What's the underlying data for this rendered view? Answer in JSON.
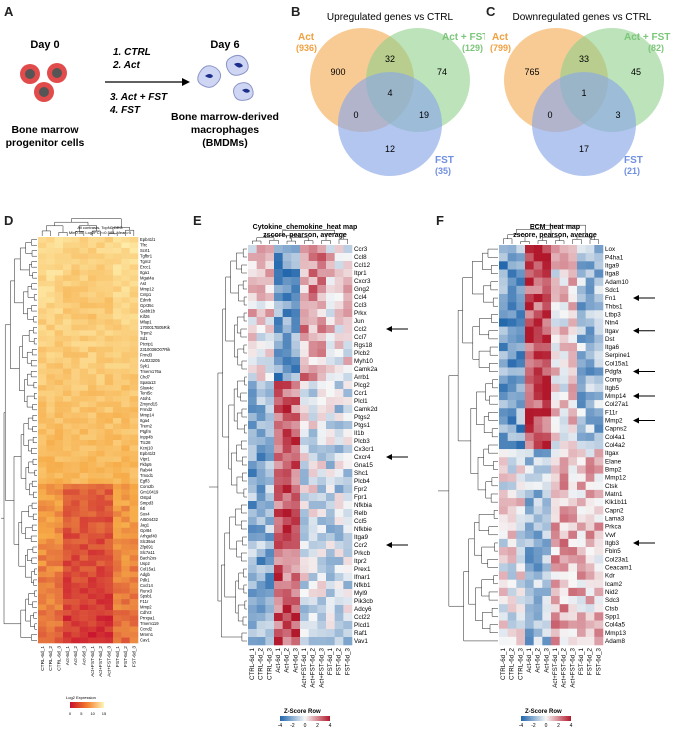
{
  "panels": {
    "A": "A",
    "B": "B",
    "C": "C",
    "D": "D",
    "E": "E",
    "F": "F"
  },
  "panel_a": {
    "day0": "Day 0",
    "day6": "Day 6",
    "cond1": "1. CTRL",
    "cond2": "2. Act",
    "cond3": "3. Act + FST",
    "cond4": "4. FST",
    "left_l1": "Bone marrow",
    "left_l2": "progenitor cells",
    "right_l1": "Bone marrow-derived",
    "right_l2": "macrophages",
    "right_l3": "(BMDMs)"
  },
  "venn_up": {
    "title": "Upregulated genes vs CTRL",
    "act_label": "Act",
    "act_count": "(936)",
    "actfst_label": "Act + FST",
    "actfst_count": "(129)",
    "fst_label": "FST",
    "fst_count": "(35)",
    "n_act": "900",
    "n_act_actfst": "32",
    "n_actfst": "74",
    "n_center": "4",
    "n_act_fst": "0",
    "n_actfst_fst": "19",
    "n_fst": "12"
  },
  "venn_down": {
    "title": "Downregulated genes vs CTRL",
    "act_label": "Act",
    "act_count": "(799)",
    "actfst_label": "Act + FST",
    "actfst_count": "(82)",
    "fst_label": "FST",
    "fst_count": "(21)",
    "n_act": "765",
    "n_act_actfst": "33",
    "n_actfst": "45",
    "n_center": "1",
    "n_act_fst": "0",
    "n_actfst_fst": "3",
    "n_fst": "17"
  },
  "colors": {
    "act": "#f5b567",
    "actfst": "#8fd18a",
    "fst": "#8aa8e8",
    "act_text": "#f0a040",
    "actfst_text": "#7cc67a",
    "fst_text": "#6f8fe0"
  },
  "heat_d": {
    "subtitle1": "All contrasts, TopN0 DEG",
    "subtitle2": "Min0.05, Log2FC>=0.585, Mean>5",
    "genes": [
      "Epb41l1",
      "Tfrc",
      "Scrt1",
      "Tgfbr1",
      "Tgm2",
      "Ercc1",
      "Itga1",
      "Mgat4a",
      "Ast",
      "Mmp12",
      "Cntp1",
      "Ednrb",
      "Gpr35c",
      "Gabb1b",
      "Kif26",
      "Mfap1",
      "1700017B05Rik",
      "Trpm2",
      "Sd1",
      "Ptcrip1",
      "2310036O07Rik",
      "Frmd3",
      "AU023205",
      "Syk1",
      "Tmem176a",
      "Chd7",
      "Spata13",
      "Slow4c",
      "Tent5c",
      "Atoh1",
      "Zmynd15",
      "Frmd2",
      "Mmp14",
      "Itga4",
      "Trem2",
      "Ptgfrn",
      "Inpp4b",
      "Ttc28",
      "Kcnj10",
      "Epb41l3",
      "Vipr1",
      "Fkbp5",
      "Rab44",
      "Tmod1",
      "Egfl3",
      "Coro2b",
      "Gm10419",
      "Ostpd",
      "Smpd3",
      "Il4l",
      "Sox4",
      "AI504432",
      "Jag1",
      "Gpr84",
      "Arhgef40",
      "Slc39a4",
      "Zfp691",
      "Slc7a11",
      "Bach2os",
      "Usp2",
      "Col15a1",
      "Adgb",
      "Pdk1",
      "Cxcl14",
      "Runx3",
      "Spsb1",
      "F11r",
      "Mmp2",
      "Cdhr3",
      "Prrxpa1",
      "Tmem119",
      "Ccnd2",
      "Mmrn1",
      "Cav1"
    ],
    "columns": [
      "CTRL-6d_1",
      "CTRL-6d_2",
      "CTRL-6d_3",
      "Act-6d_1",
      "Act-6d_2",
      "Act-6d_3",
      "Act+FST-6d_1",
      "Act+FST-6d_2",
      "Act+FST-6d_3",
      "FST-6d_1",
      "FST-6d_2",
      "FST-6d_3"
    ],
    "legend_title": "Log2 Expression",
    "legend_ticks": [
      "0",
      "5",
      "10",
      "15"
    ]
  },
  "heat_e": {
    "title1": "Cytokine_chemokine_heat map",
    "title2": "zscore, pearson, average",
    "genes": [
      "Ccr3",
      "Ccl8",
      "Ccl12",
      "Itpr1",
      "Cxcr3",
      "Gng2",
      "Ccl4",
      "Ccl3",
      "Prkx",
      "Jun",
      "Ccl2",
      "Ccl7",
      "Rgs18",
      "Plcb2",
      "Myh10",
      "Camk2a",
      "Arrb1",
      "Plcg2",
      "Ccr1",
      "Plcl1",
      "Camk2d",
      "Ptgs2",
      "Ptgs1",
      "Il1b",
      "Plcb3",
      "Cx3cr1",
      "Cxcr4",
      "Gna15",
      "Shc1",
      "Plcb4",
      "Fpr2",
      "Fpr1",
      "Nfkbia",
      "Relb",
      "Ccl5",
      "Nfkbie",
      "Itga9",
      "Ccr2",
      "Prkcb",
      "Itpr2",
      "Prex1",
      "Ifnar1",
      "Nfkb1",
      "Myl9",
      "Pik3cb",
      "Adcy6",
      "Ccl22",
      "Plcd1",
      "Raf1",
      "Vav1"
    ],
    "arrows": [
      "Ccl2",
      "Cxcr4",
      "Ccr2"
    ],
    "columns": [
      "CTRL-6d_1",
      "CTRL-6d_2",
      "CTRL-6d_3",
      "Act-6d_1",
      "Act-6d_2",
      "Act-6d_3",
      "Act+FST-6d_1",
      "Act+FST-6d_2",
      "Act+FST-6d_3",
      "FST-6d_1",
      "FST-6d_2",
      "FST-6d_3"
    ],
    "legend_title": "Z-Score Row",
    "legend_ticks": [
      "-4",
      "-2",
      "0",
      "2",
      "4"
    ]
  },
  "heat_f": {
    "title1": "ECM_heat map",
    "title2": "zscore, pearson, average",
    "genes": [
      "Lox",
      "P4ha1",
      "Itga9",
      "Itga8",
      "Adam10",
      "Sdc1",
      "Fn1",
      "Thbs1",
      "Ltbp3",
      "Ntn4",
      "Itgav",
      "Dst",
      "Itga6",
      "Serpine1",
      "Col15a1",
      "Pdgfa",
      "Comp",
      "Itgb5",
      "Mmp14",
      "Col27a1",
      "F11r",
      "Mmp2",
      "Capns2",
      "Col4a1",
      "Col4a2",
      "Itgax",
      "Elane",
      "Bmp2",
      "Mmp12",
      "Ctsk",
      "Matn1",
      "Klk1b11",
      "Capn2",
      "Lama3",
      "Prkca",
      "Vwf",
      "Itgb3",
      "Fbln5",
      "Col23a1",
      "Ceacam1",
      "Kdr",
      "Icam2",
      "Nid2",
      "Sdc3",
      "Ctsb",
      "Spp1",
      "Col4a5",
      "Mmp13",
      "Adam8"
    ],
    "arrows": [
      "Fn1",
      "Itgav",
      "Pdgfa",
      "Mmp14",
      "Mmp2",
      "Itgb3"
    ],
    "columns": [
      "CTRL-6d_1",
      "CTRL-6d_2",
      "CTRL-6d_3",
      "Act-6d_1",
      "Act-6d_2",
      "Act-6d_3",
      "Act+FST-6d_1",
      "Act+FST-6d_2",
      "Act+FST-6d_3",
      "FST-6d_1",
      "FST-6d_2",
      "FST-6d_3"
    ],
    "legend_title": "Z-Score Row",
    "legend_ticks": [
      "-4",
      "-2",
      "0",
      "2",
      "4"
    ]
  }
}
